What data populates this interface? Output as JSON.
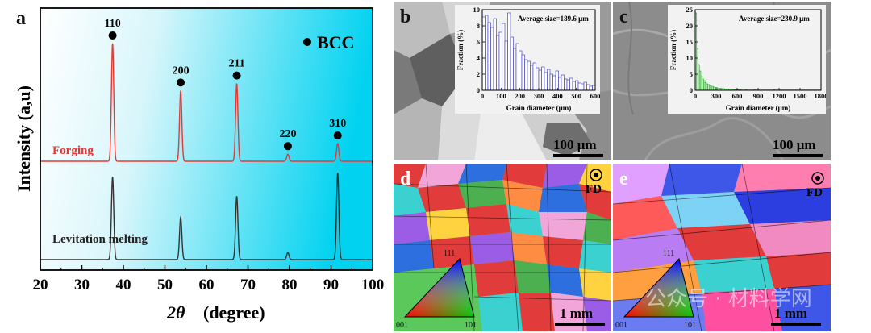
{
  "figure": {
    "panel_a": {
      "letter": "a",
      "ylabel": "Intensity (a,u)",
      "xlabel_symbol": "2θ",
      "xlabel_unit": "(degree)",
      "legend_label": "BCC",
      "sample_top": "Forging",
      "sample_bottom": "Levitation melting",
      "colors": {
        "top": "#e53935",
        "bottom": "#333333",
        "bg_left": "#ffffff",
        "bg_right": "#00d2f0"
      }
    },
    "panel_b": {
      "letter": "b",
      "inset_avg": "Average size=189.6 μm",
      "inset_xlabel": "Grain diameter (μm)",
      "inset_ylabel": "Fraction (%)",
      "scale_bar": "100 μm"
    },
    "panel_c": {
      "letter": "c",
      "inset_avg": "Average size=230.9 μm",
      "inset_xlabel": "Grain diameter (μm)",
      "inset_ylabel": "Fraction (%)",
      "scale_bar": "100 μm"
    },
    "panel_d": {
      "letter": "d",
      "fd": "FD",
      "scale_bar": "1 mm",
      "tri_top": "111",
      "tri_left": "001",
      "tri_right": "101"
    },
    "panel_e": {
      "letter": "e",
      "fd": "FD",
      "scale_bar": "1 mm",
      "tri_top": "111",
      "tri_left": "001",
      "tri_right": "101"
    },
    "watermark": "公众号 · 材料学网"
  },
  "chart_data": [
    {
      "type": "line",
      "panel": "a",
      "xlabel": "2θ (degree)",
      "ylabel": "Intensity (a,u)",
      "xlim": [
        20,
        100
      ],
      "xticks": [
        20,
        30,
        40,
        50,
        60,
        70,
        80,
        90,
        100
      ],
      "legend": "BCC",
      "peaks": [
        {
          "label": "110",
          "x": 37.4,
          "forging": 1.0,
          "levitation": 0.82
        },
        {
          "label": "200",
          "x": 53.8,
          "forging": 0.6,
          "levitation": 0.42
        },
        {
          "label": "211",
          "x": 67.3,
          "forging": 0.66,
          "levitation": 0.63
        },
        {
          "label": "220",
          "x": 79.6,
          "forging": 0.06,
          "levitation": 0.07
        },
        {
          "label": "310",
          "x": 91.6,
          "forging": 0.15,
          "levitation": 0.86
        }
      ],
      "series": [
        {
          "name": "Forging",
          "color": "#e53935"
        },
        {
          "name": "Levitation melting",
          "color": "#333333"
        }
      ]
    },
    {
      "type": "bar",
      "panel": "b",
      "title": "Average size=189.6 μm",
      "xlabel": "Grain diameter (μm)",
      "ylabel": "Fraction (%)",
      "xlim": [
        0,
        600
      ],
      "ylim": [
        0,
        10
      ],
      "xticks": [
        0,
        100,
        200,
        300,
        400,
        500,
        600
      ],
      "yticks": [
        0,
        2,
        4,
        6,
        8,
        10
      ],
      "bin_width": 15,
      "values": [
        9.1,
        9.3,
        8.4,
        7.8,
        8.9,
        6.8,
        7.2,
        8.3,
        6.1,
        9.6,
        6.6,
        5.2,
        5.8,
        4.9,
        4.4,
        3.8,
        3.6,
        3.1,
        3.4,
        2.8,
        2.5,
        2.9,
        2.2,
        2.6,
        2.0,
        1.8,
        2.4,
        1.6,
        1.9,
        1.4,
        1.3,
        1.5,
        1.1,
        1.2,
        0.9,
        0.8,
        1.0,
        0.7,
        0.5,
        0.6
      ]
    },
    {
      "type": "bar",
      "panel": "c",
      "title": "Average size=230.9 μm",
      "xlabel": "Grain diameter (μm)",
      "ylabel": "Fraction (%)",
      "xlim": [
        0,
        1800
      ],
      "ylim": [
        0,
        25
      ],
      "xticks": [
        0,
        300,
        600,
        900,
        1200,
        1500,
        1800
      ],
      "yticks": [
        0,
        5,
        10,
        15,
        20,
        25
      ],
      "bin_width": 20,
      "values": [
        24,
        13,
        8,
        6,
        4.5,
        3.5,
        3,
        2.4,
        2,
        1.8,
        1.5,
        1.3,
        1.2,
        1.0,
        0.9,
        0.8,
        0.7,
        0.6,
        0.6,
        0.5,
        0.5,
        0.4,
        0.4,
        0.3,
        0.3,
        0.3,
        0.3,
        0.2,
        0.2,
        0.2,
        0.2,
        0.2,
        0.2,
        0.1,
        0.1,
        0.1,
        0.2,
        0.1,
        0.1,
        0.1,
        0.1,
        0.1,
        0.2,
        0.1,
        0.1,
        0.1,
        0.1,
        0.1,
        0.1,
        0.1,
        0.1,
        0.1,
        0.1,
        0.1,
        0.1,
        0.1,
        0.2,
        0.1,
        0.1,
        0.1,
        0.1,
        0.1,
        0.1,
        0.1,
        0.1,
        0.1,
        0.1,
        0.1,
        0.1,
        0.1,
        0.1,
        0.1,
        0.1,
        0.1,
        0.1,
        0.1,
        0.1,
        0.1,
        0.1,
        0.1,
        0.1,
        0.1,
        0.1,
        0.1,
        0.1,
        0.1,
        0.1,
        0.1,
        0.1,
        0.1
      ]
    }
  ]
}
